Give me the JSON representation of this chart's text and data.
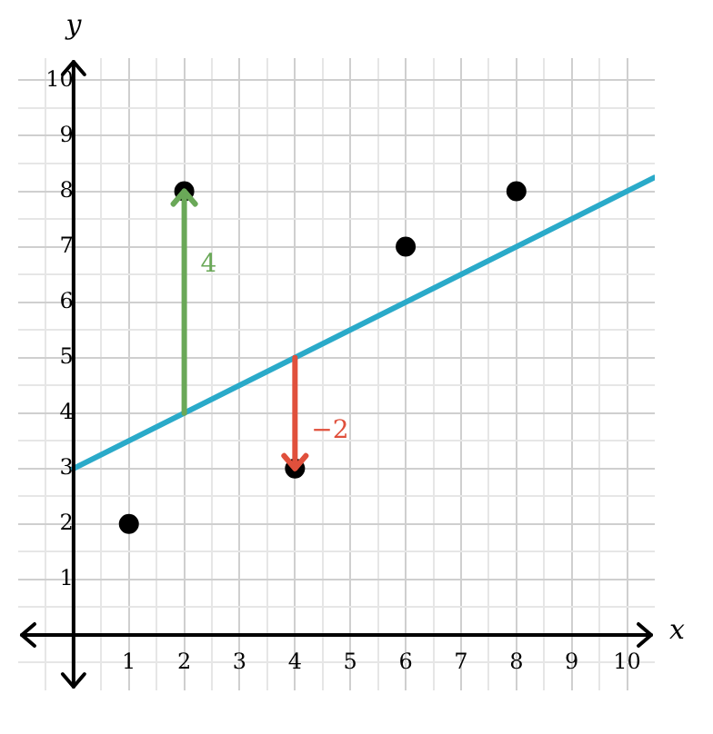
{
  "chart_data": {
    "type": "scatter",
    "xlabel": "x",
    "ylabel": "y",
    "xlim": [
      -1,
      10.5
    ],
    "ylim": [
      -1,
      10.4
    ],
    "xticks": [
      {
        "value": -0.5,
        "label": null
      },
      {
        "value": 0.5,
        "label": null
      },
      1,
      {
        "value": 1.5,
        "label": null
      },
      2,
      {
        "value": 2.5,
        "label": null
      },
      3,
      {
        "value": 3.5,
        "label": null
      },
      4,
      {
        "value": 4.5,
        "label": null
      },
      5,
      {
        "value": 5.5,
        "label": null
      },
      6,
      {
        "value": 6.5,
        "label": null
      },
      7,
      {
        "value": 7.5,
        "label": null
      },
      8,
      {
        "value": 8.5,
        "label": null
      },
      9,
      {
        "value": 9.5,
        "label": null
      },
      10
    ],
    "yticks": [
      {
        "value": -0.5,
        "label": null
      },
      {
        "value": 0.5,
        "label": null
      },
      1,
      {
        "value": 1.5,
        "label": null
      },
      2,
      {
        "value": 2.5,
        "label": null
      },
      3,
      {
        "value": 3.5,
        "label": null
      },
      4,
      {
        "value": 4.5,
        "label": null
      },
      5,
      {
        "value": 5.5,
        "label": null
      },
      6,
      {
        "value": 6.5,
        "label": null
      },
      7,
      {
        "value": 7.5,
        "label": null
      },
      8,
      {
        "value": 8.5,
        "label": null
      },
      9,
      {
        "value": 9.5,
        "label": null
      },
      10
    ],
    "grid": true,
    "legend": false,
    "marker": "circle",
    "annotations": [
      {
        "text": "4",
        "x": 2,
        "y": 8
      },
      {
        "text": "−2",
        "x": 4,
        "y": 3
      }
    ],
    "series": [
      {
        "type": "line",
        "marker": "none",
        "color": "#2aaac9",
        "x": [
          0,
          10.5
        ],
        "values": [
          3,
          8.25
        ]
      },
      {
        "type": "scatter",
        "color": "#000000",
        "x": [
          1,
          2,
          4,
          6,
          8
        ],
        "values": [
          2,
          8,
          3,
          7,
          8
        ]
      }
    ]
  }
}
